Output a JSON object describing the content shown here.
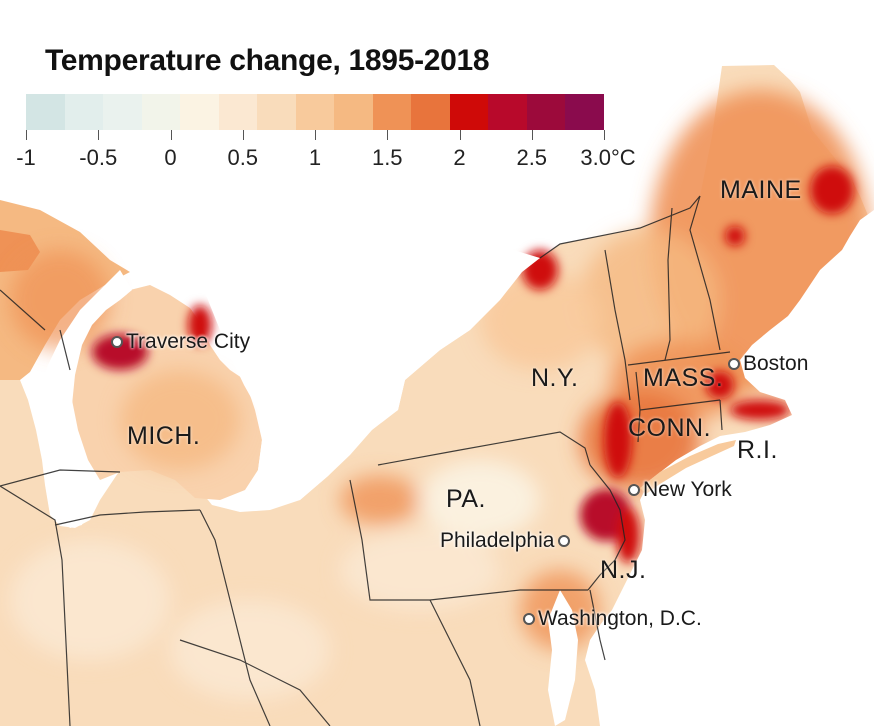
{
  "legend": {
    "title": "Temperature change, 1895-2018",
    "colors": [
      "#d3e5e4",
      "#e2eeec",
      "#eaf2ee",
      "#f2f4ea",
      "#fbf3e3",
      "#fbe8d2",
      "#f9dcbb",
      "#f8ca9c",
      "#f5b982",
      "#ef9256",
      "#e8743c",
      "#cf0a08",
      "#b8092b",
      "#9c0a3b",
      "#8a0b4d"
    ],
    "ticks": [
      "-1",
      "-0.5",
      "0",
      "0.5",
      "1",
      "1.5",
      "2",
      "2.5",
      "3.0°C"
    ]
  },
  "states": [
    {
      "name": "maine",
      "label": "MAINE"
    },
    {
      "name": "new-york",
      "label": "N.Y."
    },
    {
      "name": "massachusetts",
      "label": "MASS."
    },
    {
      "name": "connecticut",
      "label": "CONN."
    },
    {
      "name": "rhode-island",
      "label": "R.I."
    },
    {
      "name": "michigan",
      "label": "MICH."
    },
    {
      "name": "pennsylvania",
      "label": "PA."
    },
    {
      "name": "new-jersey",
      "label": "N.J."
    }
  ],
  "cities": [
    {
      "name": "traverse-city",
      "label": "Traverse City"
    },
    {
      "name": "boston",
      "label": "Boston"
    },
    {
      "name": "new-york",
      "label": "New York"
    },
    {
      "name": "philadelphia",
      "label": "Philadelphia"
    },
    {
      "name": "washington-dc",
      "label": "Washington, D.C."
    }
  ]
}
